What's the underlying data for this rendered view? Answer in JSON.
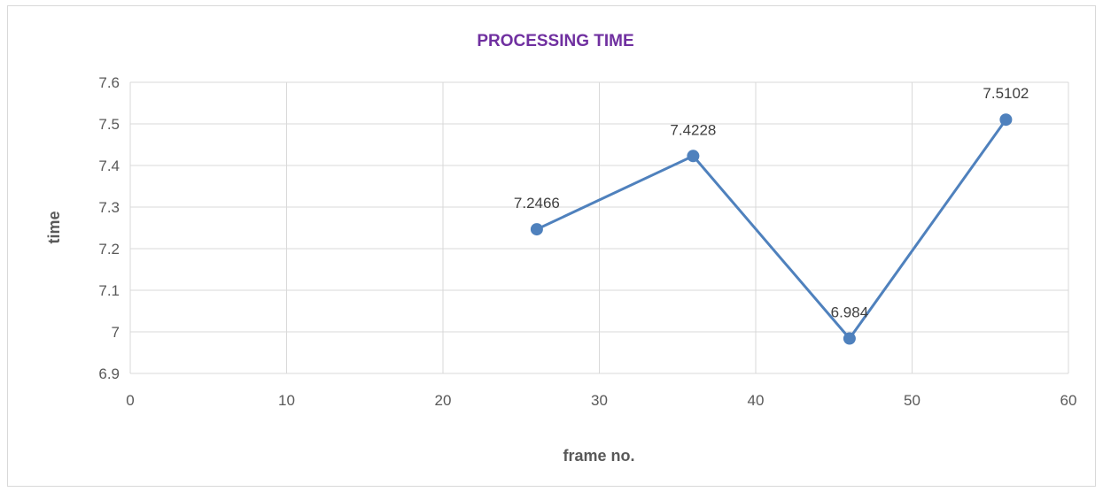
{
  "chart_data": {
    "type": "scatter",
    "title": "PROCESSING TIME",
    "xlabel": "frame no.",
    "ylabel": "time",
    "xlim": [
      0,
      60
    ],
    "ylim": [
      6.9,
      7.6
    ],
    "xticks": [
      0,
      10,
      20,
      30,
      40,
      50,
      60
    ],
    "yticks": [
      "6.9",
      "7",
      "7.1",
      "7.2",
      "7.3",
      "7.4",
      "7.5",
      "7.6"
    ],
    "grid": true,
    "legend": "none",
    "series": [
      {
        "color": "#4f81bd",
        "x": [
          26,
          36,
          46,
          56
        ],
        "y": [
          7.2466,
          7.4228,
          6.984,
          7.5102
        ],
        "labels": [
          "7.2466",
          "7.4228",
          "6.984",
          "7.5102"
        ]
      }
    ]
  }
}
